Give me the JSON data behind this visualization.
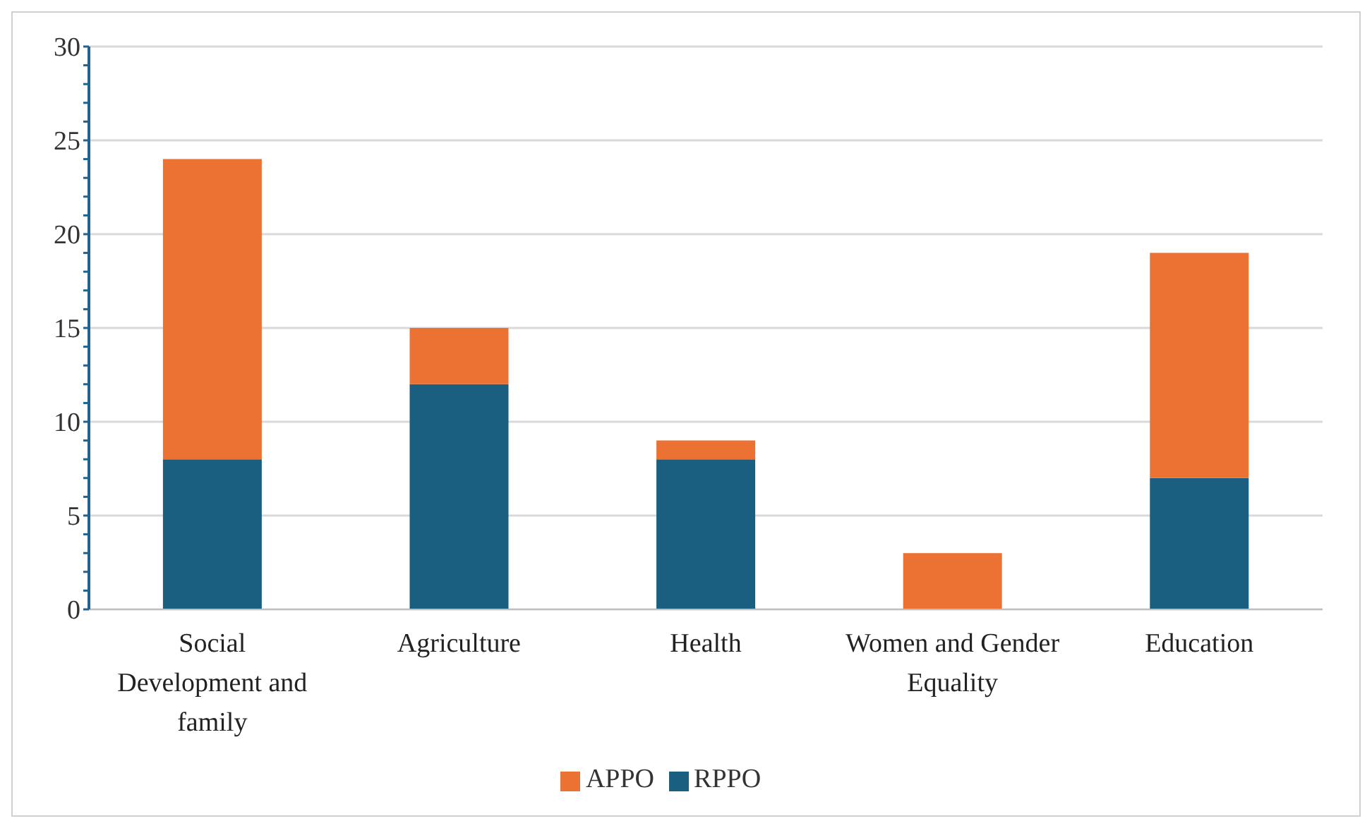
{
  "chart_data": {
    "type": "bar",
    "stacked": true,
    "categories": [
      "Social Development and family",
      "Agriculture",
      "Health",
      "Women and Gender Equality",
      "Education"
    ],
    "series": [
      {
        "name": "RPPO",
        "color": "#1a5e80",
        "values": [
          8,
          12,
          8,
          0,
          7
        ]
      },
      {
        "name": "APPO",
        "color": "#ec7233",
        "values": [
          16,
          3,
          1,
          3,
          12
        ]
      }
    ],
    "ylim": [
      0,
      30
    ],
    "yticks": [
      0,
      {
        "value": 1,
        "label": null
      },
      {
        "value": 2,
        "label": null
      },
      {
        "value": 3,
        "label": null
      },
      {
        "value": 4,
        "label": null
      },
      5,
      {
        "value": 6,
        "label": null
      },
      {
        "value": 7,
        "label": null
      },
      {
        "value": 8,
        "label": null
      },
      {
        "value": 9,
        "label": null
      },
      10,
      {
        "value": 11,
        "label": null
      },
      {
        "value": 12,
        "label": null
      },
      {
        "value": 13,
        "label": null
      },
      {
        "value": 14,
        "label": null
      },
      15,
      {
        "value": 16,
        "label": null
      },
      {
        "value": 17,
        "label": null
      },
      {
        "value": 18,
        "label": null
      },
      {
        "value": 19,
        "label": null
      },
      20,
      {
        "value": 21,
        "label": null
      },
      {
        "value": 22,
        "label": null
      },
      {
        "value": 23,
        "label": null
      },
      {
        "value": 24,
        "label": null
      },
      25,
      {
        "value": 26,
        "label": null
      },
      {
        "value": 27,
        "label": null
      },
      {
        "value": 28,
        "label": null
      },
      {
        "value": 29,
        "label": null
      },
      30
    ],
    "grid": "y",
    "legend": "bottom"
  }
}
